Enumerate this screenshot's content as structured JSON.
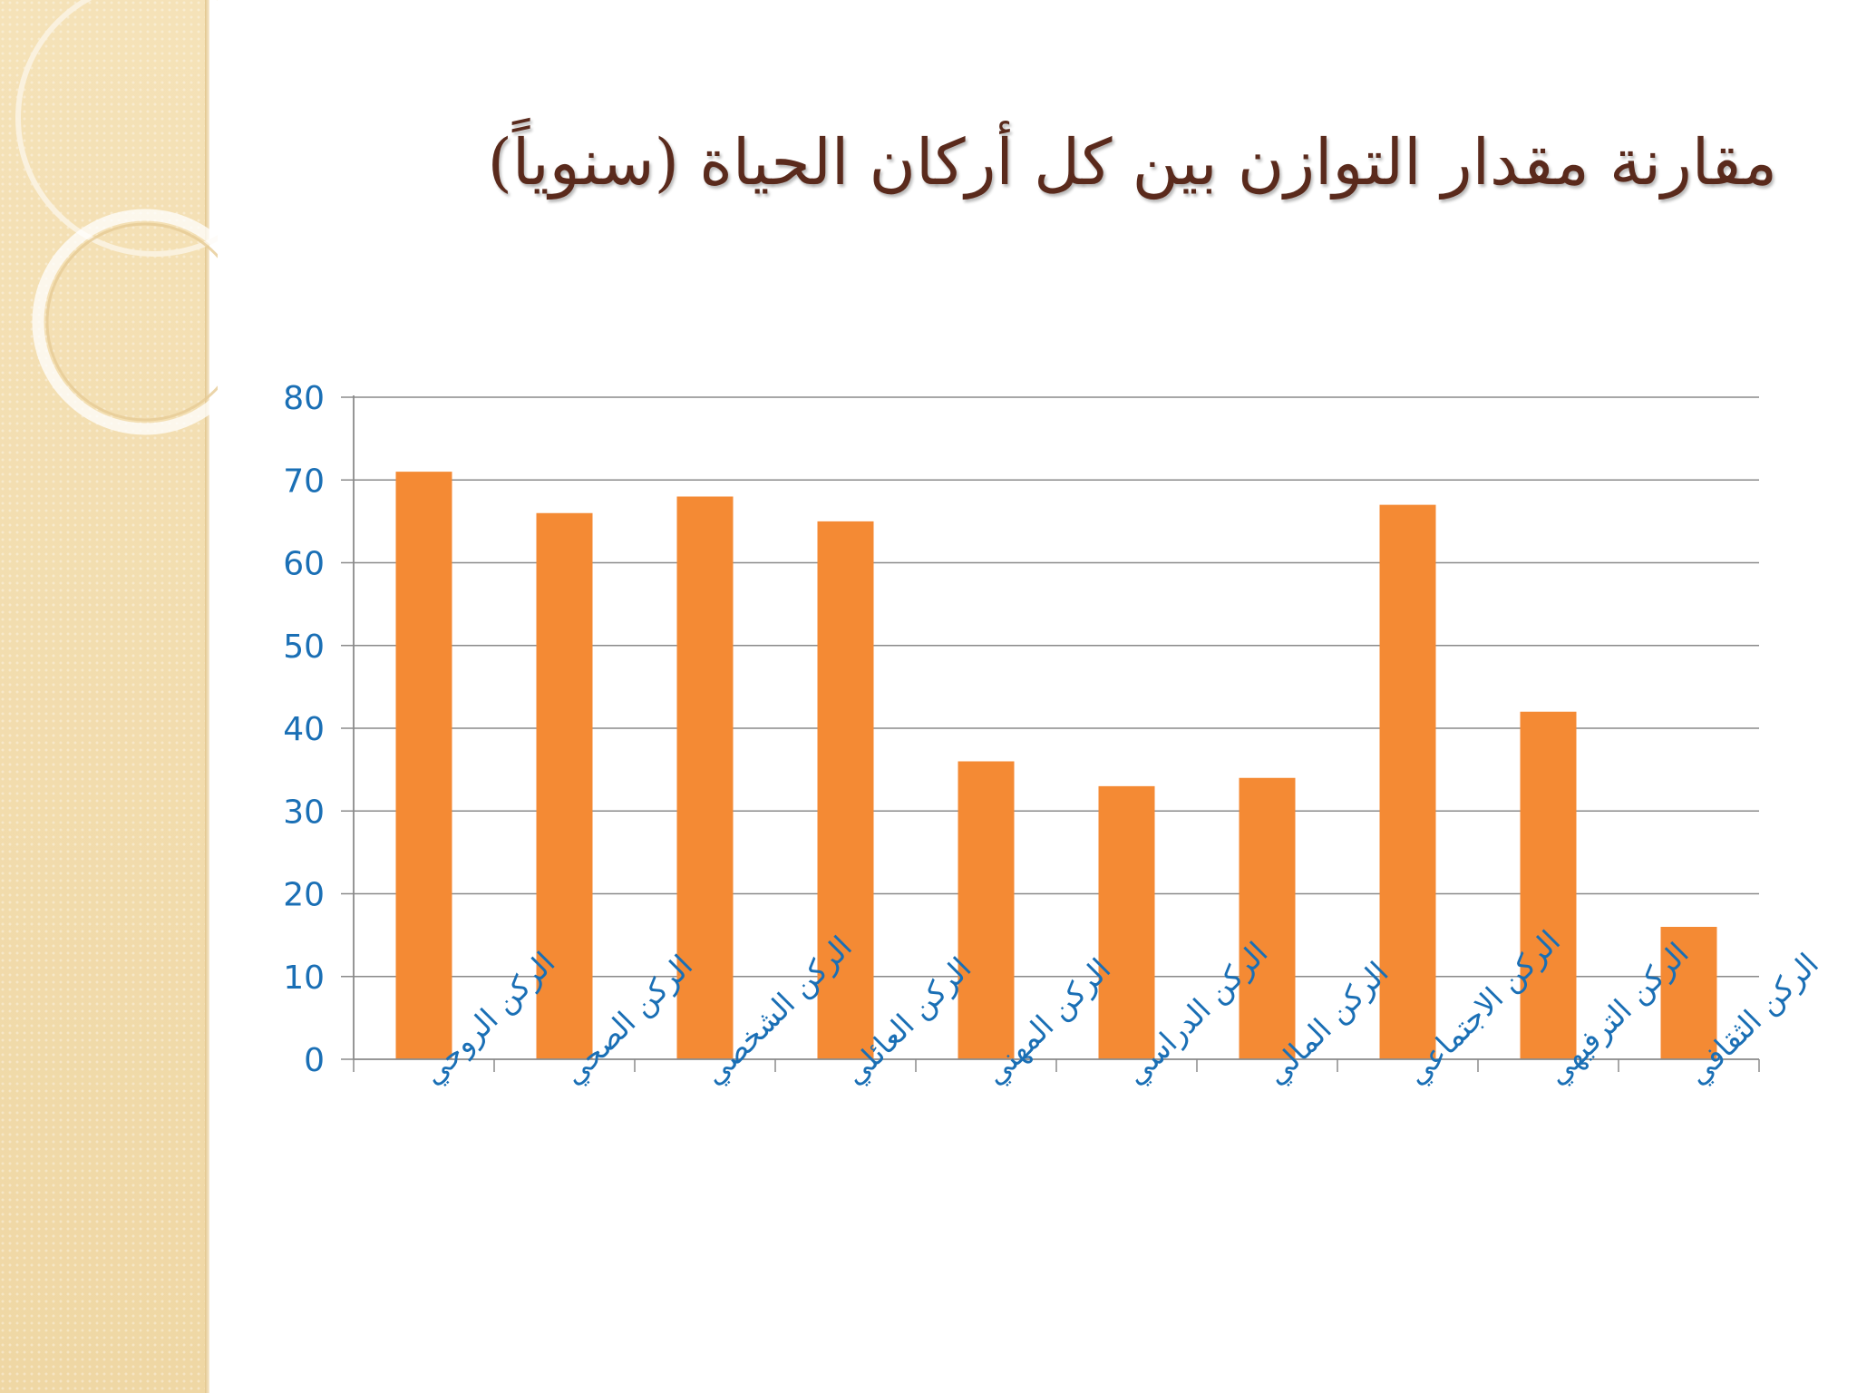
{
  "slide": {
    "title": "مقارنة مقدار التوازن بين كل أركان الحياة (سنوياً)"
  },
  "colors": {
    "bar": "#f48a34",
    "axis_labels": "#1a6fb5",
    "gridline": "#8a8a8a",
    "title": "#5a2a1c",
    "side_panel": "#f3deb0"
  },
  "chart_data": {
    "type": "bar",
    "title": "",
    "xlabel": "",
    "ylabel": "",
    "categories": [
      "الركن الروحي",
      "الركن الصحي",
      "الركن الشخصي",
      "الركن العائلي",
      "الركن المهني",
      "الركن الدراسي",
      "الركن المالي",
      "الركن الاجتماعي",
      "الركن الترفيهي",
      "الركن الثقافي"
    ],
    "values": [
      71,
      66,
      68,
      65,
      36,
      33,
      34,
      67,
      42,
      16
    ],
    "ylim": [
      0,
      80
    ],
    "yticks": [
      0,
      10,
      20,
      30,
      40,
      50,
      60,
      70,
      80
    ],
    "grid": true,
    "legend": "none"
  }
}
